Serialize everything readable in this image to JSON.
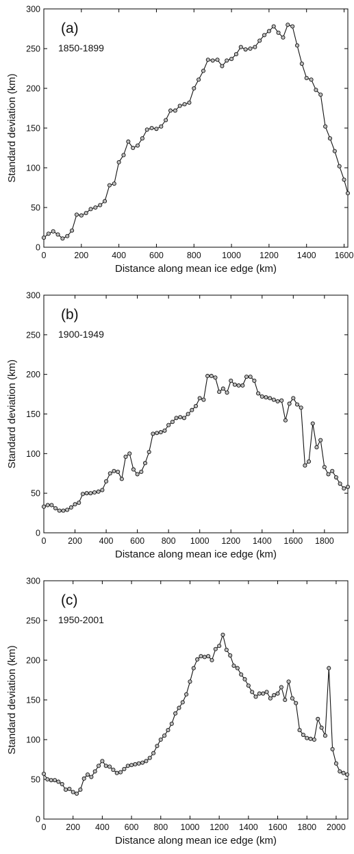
{
  "chart_data": [
    {
      "type": "line",
      "panel": "(a)",
      "period": "1850-1899",
      "xlabel": "Distance along mean ice edge (km)",
      "ylabel": "Standard deviation (km)",
      "xlim": [
        0,
        1620
      ],
      "ylim": [
        0,
        300
      ],
      "xticks": [
        0,
        200,
        400,
        600,
        800,
        1000,
        1200,
        1400,
        1600
      ],
      "yticks": [
        0,
        50,
        100,
        150,
        200,
        250,
        300
      ],
      "grid": false,
      "x": [
        0,
        25,
        50,
        75,
        100,
        125,
        150,
        175,
        200,
        225,
        250,
        275,
        300,
        325,
        350,
        375,
        400,
        425,
        450,
        475,
        500,
        525,
        550,
        575,
        600,
        625,
        650,
        675,
        700,
        725,
        750,
        775,
        800,
        825,
        850,
        875,
        900,
        925,
        950,
        975,
        1000,
        1025,
        1050,
        1075,
        1100,
        1125,
        1150,
        1175,
        1200,
        1225,
        1250,
        1275,
        1300,
        1325,
        1350,
        1375,
        1400,
        1425,
        1450,
        1475,
        1500,
        1525,
        1550,
        1575,
        1600,
        1620
      ],
      "y": [
        12,
        17,
        20,
        16,
        11,
        14,
        21,
        41,
        40,
        43,
        48,
        50,
        53,
        58,
        78,
        80,
        107,
        116,
        133,
        125,
        128,
        137,
        148,
        150,
        149,
        152,
        160,
        172,
        172,
        178,
        180,
        182,
        200,
        211,
        222,
        236,
        235,
        236,
        228,
        235,
        237,
        243,
        252,
        249,
        250,
        252,
        260,
        267,
        272,
        278,
        270,
        264,
        280,
        278,
        254,
        231,
        213,
        211,
        198,
        192,
        152,
        137,
        121,
        102,
        85,
        68
      ]
    },
    {
      "type": "line",
      "panel": "(b)",
      "period": "1900-1949",
      "xlabel": "Distance along mean ice edge (km)",
      "ylabel": "Standard deviation (km)",
      "xlim": [
        0,
        1950
      ],
      "ylim": [
        0,
        300
      ],
      "xticks": [
        0,
        200,
        400,
        600,
        800,
        1000,
        1200,
        1400,
        1600,
        1800
      ],
      "yticks": [
        0,
        50,
        100,
        150,
        200,
        250,
        300
      ],
      "grid": false,
      "x": [
        0,
        25,
        50,
        75,
        100,
        125,
        150,
        175,
        200,
        225,
        250,
        275,
        300,
        325,
        350,
        375,
        400,
        425,
        450,
        475,
        500,
        525,
        550,
        575,
        600,
        625,
        650,
        675,
        700,
        725,
        750,
        775,
        800,
        825,
        850,
        875,
        900,
        925,
        950,
        975,
        1000,
        1025,
        1050,
        1075,
        1100,
        1125,
        1150,
        1175,
        1200,
        1225,
        1250,
        1275,
        1300,
        1325,
        1350,
        1375,
        1400,
        1425,
        1450,
        1475,
        1500,
        1525,
        1550,
        1575,
        1600,
        1625,
        1650,
        1675,
        1700,
        1725,
        1750,
        1775,
        1800,
        1825,
        1850,
        1875,
        1900,
        1925,
        1950
      ],
      "y": [
        33,
        35,
        35,
        31,
        28,
        28,
        29,
        32,
        36,
        38,
        49,
        50,
        50,
        51,
        52,
        54,
        65,
        75,
        78,
        77,
        68,
        96,
        100,
        80,
        74,
        77,
        88,
        102,
        125,
        126,
        127,
        129,
        136,
        140,
        145,
        146,
        145,
        150,
        155,
        160,
        170,
        168,
        198,
        198,
        196,
        178,
        182,
        177,
        192,
        187,
        186,
        186,
        197,
        197,
        192,
        176,
        172,
        171,
        170,
        168,
        166,
        167,
        142,
        163,
        170,
        162,
        158,
        85,
        90,
        138,
        108,
        117,
        83,
        74,
        78,
        70,
        62,
        56,
        58
      ]
    },
    {
      "type": "line",
      "panel": "(c)",
      "period": "1950-2001",
      "xlabel": "Distance along mean ice edge (km)",
      "ylabel": "Standard deviation (km)",
      "xlim": [
        0,
        2080
      ],
      "ylim": [
        0,
        300
      ],
      "xticks": [
        0,
        200,
        400,
        600,
        800,
        1000,
        1200,
        1400,
        1600,
        1800,
        2000
      ],
      "yticks": [
        0,
        50,
        100,
        150,
        200,
        250,
        300
      ],
      "grid": false,
      "x": [
        0,
        25,
        50,
        75,
        100,
        125,
        150,
        175,
        200,
        225,
        250,
        275,
        300,
        325,
        350,
        375,
        400,
        425,
        450,
        475,
        500,
        525,
        550,
        575,
        600,
        625,
        650,
        675,
        700,
        725,
        750,
        775,
        800,
        825,
        850,
        875,
        900,
        925,
        950,
        975,
        1000,
        1025,
        1050,
        1075,
        1100,
        1125,
        1150,
        1175,
        1200,
        1225,
        1250,
        1275,
        1300,
        1325,
        1350,
        1375,
        1400,
        1425,
        1450,
        1475,
        1500,
        1525,
        1550,
        1575,
        1600,
        1625,
        1650,
        1675,
        1700,
        1725,
        1750,
        1775,
        1800,
        1825,
        1850,
        1875,
        1900,
        1925,
        1950,
        1975,
        2000,
        2025,
        2050,
        2075
      ],
      "y": [
        57,
        50,
        49,
        49,
        47,
        44,
        37,
        38,
        34,
        32,
        37,
        51,
        56,
        53,
        60,
        67,
        73,
        67,
        66,
        62,
        58,
        59,
        63,
        67,
        68,
        69,
        70,
        71,
        73,
        77,
        83,
        92,
        100,
        105,
        112,
        120,
        133,
        140,
        147,
        157,
        173,
        190,
        201,
        205,
        204,
        205,
        200,
        214,
        218,
        232,
        213,
        206,
        193,
        190,
        182,
        176,
        168,
        160,
        154,
        158,
        158,
        160,
        152,
        156,
        158,
        166,
        150,
        173,
        152,
        146,
        112,
        106,
        102,
        101,
        100,
        126,
        115,
        105,
        190,
        88,
        70,
        60,
        58,
        56
      ]
    }
  ]
}
